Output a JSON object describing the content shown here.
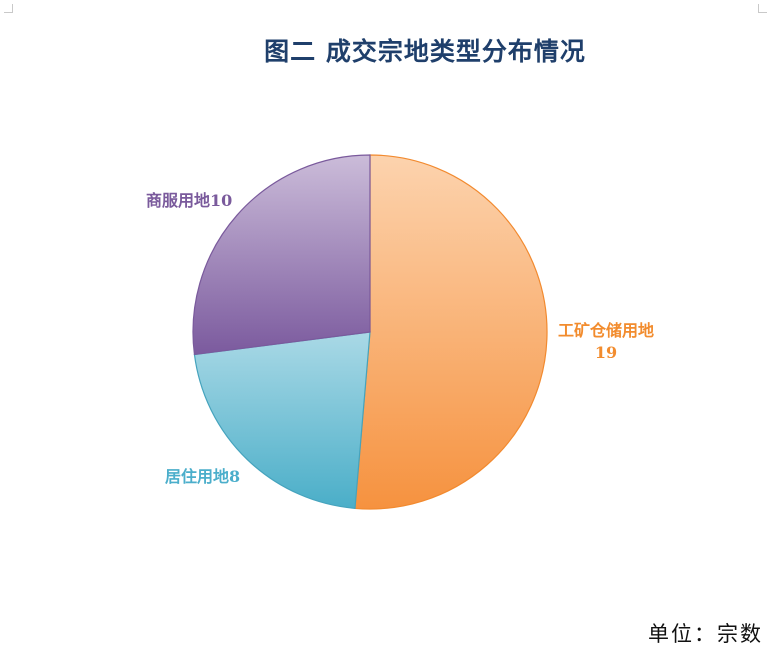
{
  "chart_data": {
    "type": "pie",
    "title": "图二 成交宗地类型分布情况",
    "slices": [
      {
        "name": "工矿仓储用地",
        "value": 19,
        "label_lines": [
          "工矿仓储用地",
          "19"
        ],
        "color_light": "#fcd3ae",
        "color_dark": "#f6923f",
        "stroke": "#f28a2f",
        "label_color": "#f28c2e"
      },
      {
        "name": "居住用地",
        "value": 8,
        "label_lines": [
          "居住用地8"
        ],
        "color_light": "#aad9e6",
        "color_dark": "#4aaec8",
        "stroke": "#45a3bd",
        "label_color": "#4baecb"
      },
      {
        "name": "商服用地",
        "value": 10,
        "label_lines": [
          "商服用地10"
        ],
        "color_light": "#cbbcd9",
        "color_dark": "#7b5a9e",
        "stroke": "#7a5a9c",
        "label_color": "#7a5a9c"
      }
    ]
  },
  "unit_note": "单位：宗数"
}
